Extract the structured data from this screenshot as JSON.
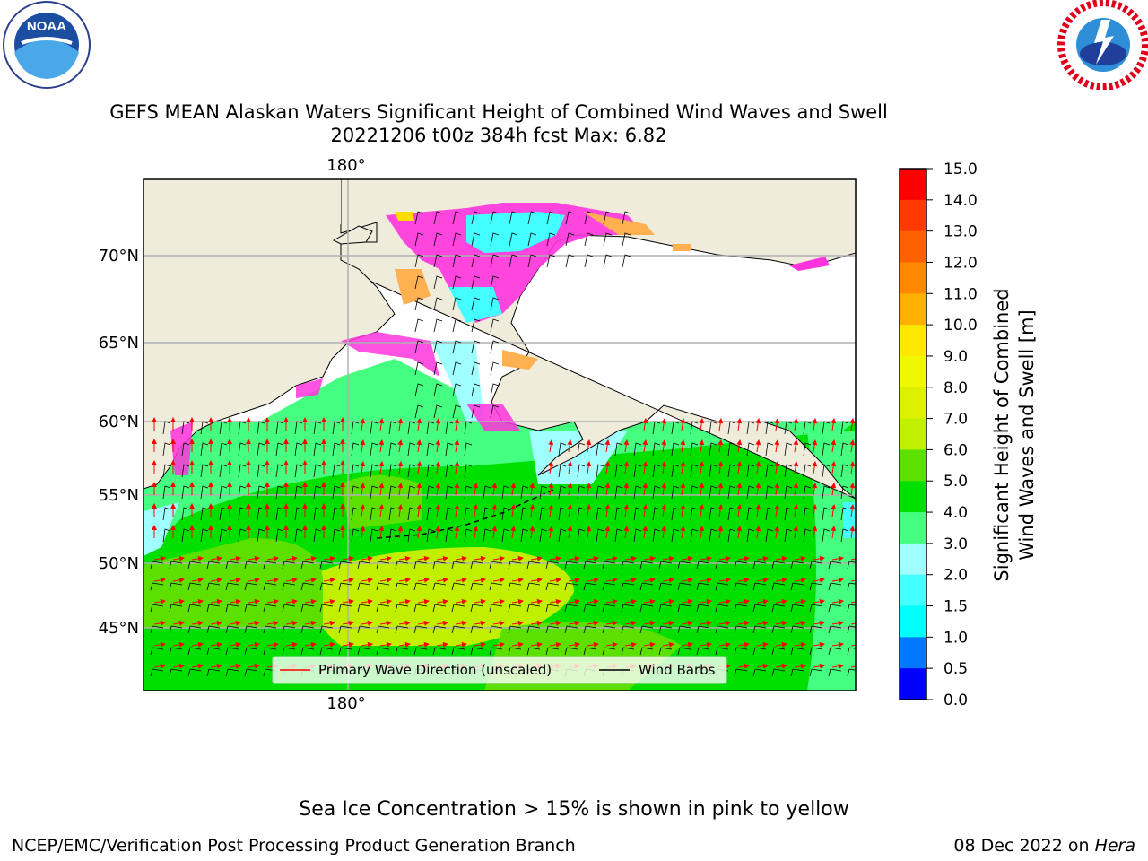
{
  "header": {
    "title_line1": "GEFS MEAN Alaskan Waters Significant Height of Combined Wind Waves and Swell",
    "title_line2": "20221206 t00z 384h fcst   Max: 6.82"
  },
  "logos": {
    "left": {
      "name": "noaa-logo",
      "text": "NOAA",
      "ring_text": "NATIONAL OCEANIC AND ATMOSPHERIC ADMINISTRATION • U.S. DEPARTMENT OF COMMERCE"
    },
    "right": {
      "name": "nws-logo",
      "ring_text": "NATIONAL WEATHER SERVICE"
    }
  },
  "map": {
    "lon_labels": [
      "180°"
    ],
    "lat_labels": [
      "70°N",
      "65°N",
      "60°N",
      "55°N",
      "50°N",
      "45°N"
    ],
    "legend": {
      "wave_direction_label": "Primary Wave Direction (unscaled)",
      "wind_barbs_label": "Wind Barbs",
      "wave_direction_color": "#ff0000",
      "wind_barbs_color": "#000000"
    },
    "colors": {
      "land": "#efecdc",
      "grid": "#b0b0b0",
      "ice_pink": "#ff33dd",
      "ice_orange": "#ffb050",
      "ice_yellow": "#ffdd00"
    }
  },
  "colorbar": {
    "label_line1": "Significant Height of Combined",
    "label_line2": "Wind Waves and Swell [m]",
    "ticks": [
      "0.0",
      "0.5",
      "1.0",
      "1.5",
      "2.0",
      "3.0",
      "4.0",
      "5.0",
      "6.0",
      "7.0",
      "8.0",
      "9.0",
      "10.0",
      "11.0",
      "12.0",
      "13.0",
      "14.0",
      "15.0"
    ],
    "colors": [
      "#0000ff",
      "#0078ff",
      "#00ffff",
      "#44ffff",
      "#a0ffff",
      "#44ff80",
      "#00e000",
      "#5ce000",
      "#c0f000",
      "#dcf000",
      "#f0f800",
      "#ffe800",
      "#ffb000",
      "#ff8800",
      "#ff6000",
      "#ff3a00",
      "#ff0000"
    ]
  },
  "footer": {
    "ice_note": "Sea Ice Concentration > 15% is shown in pink to yellow",
    "credit": "NCEP/EMC/Verification Post Processing Product Generation Branch",
    "date": "08 Dec 2022 on",
    "machine": "Hera"
  }
}
